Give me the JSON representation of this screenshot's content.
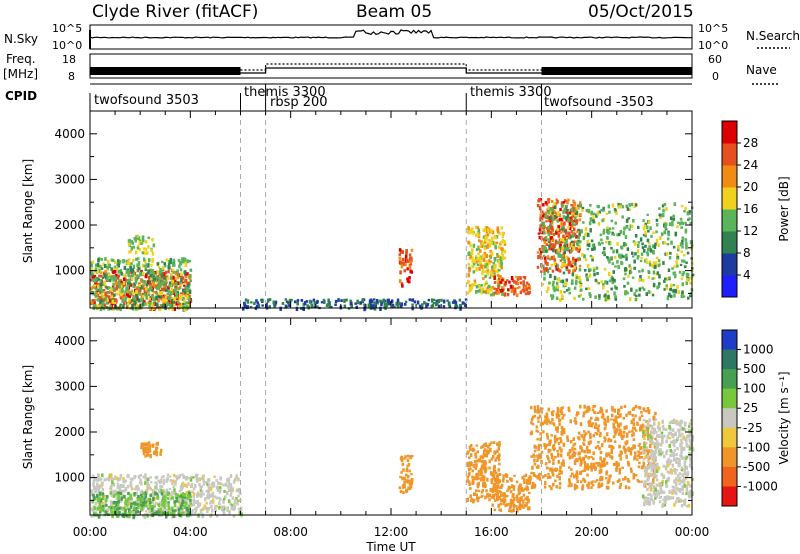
{
  "header": {
    "station": "Clyde River (fitACF)",
    "beam": "Beam 05",
    "date": "05/Oct/2015"
  },
  "strip": {
    "nsky_label": "N.Sky",
    "nsky_ticks": [
      "10^5",
      "10^0"
    ],
    "nsearch_label": "N.Search",
    "freq_label_1": "Freq.",
    "freq_label_2": "[MHz]",
    "freq_ticks": [
      "18",
      "8"
    ],
    "nave_label": "Nave",
    "nave_ticks": [
      "60",
      "0"
    ],
    "cpid_label": "CPID",
    "cpid_segments": [
      {
        "label": "twofsound 3503",
        "start_hour": 0.0,
        "end_hour": 6.0
      },
      {
        "label": "themis 3300",
        "start_hour": 6.0,
        "end_hour": 7.0
      },
      {
        "label": "rbsp 200",
        "start_hour": 7.0,
        "end_hour": 15.0
      },
      {
        "label": "themis 3300",
        "start_hour": 15.0,
        "end_hour": 18.0
      },
      {
        "label": "twofsound -3503",
        "start_hour": 18.0,
        "end_hour": 24.0
      }
    ]
  },
  "axes": {
    "xlabel": "Time UT",
    "ylabel": "Slant Range [km]",
    "x_ticks": [
      "00:00",
      "04:00",
      "08:00",
      "12:00",
      "16:00",
      "20:00",
      "00:00"
    ],
    "y_ticks": [
      "1000",
      "2000",
      "3000",
      "4000"
    ]
  },
  "colorbars": {
    "power": {
      "label": "Power [dB]",
      "ticks": [
        "4",
        "8",
        "12",
        "16",
        "20",
        "24",
        "28"
      ],
      "colors": [
        "#1e1eff",
        "#1e3ca0",
        "#328250",
        "#5ab45a",
        "#f0d21e",
        "#f08c14",
        "#e6501e",
        "#dc0000"
      ]
    },
    "velocity": {
      "label": "Velocity [m s⁻¹]",
      "ticks": [
        "1000",
        "500",
        "100",
        "25",
        "-25",
        "-100",
        "-500",
        "-1000"
      ],
      "colors": [
        "#1e3cc8",
        "#2d7864",
        "#46a050",
        "#78c83c",
        "#c8c8c0",
        "#f0c83c",
        "#f09628",
        "#f0641e",
        "#e61414"
      ]
    }
  },
  "chart_data": {
    "type": "heatmap",
    "x_range_hours": [
      0,
      24
    ],
    "y_range_km": [
      180,
      4500
    ],
    "cpid_change_hours": [
      6.0,
      7.0,
      15.0,
      18.0
    ],
    "panels": [
      {
        "name": "Power [dB]",
        "regions": [
          {
            "t0": 0.0,
            "t1": 4.0,
            "r0": 180,
            "r1": 1050,
            "value": 26
          },
          {
            "t0": 0.0,
            "t1": 4.0,
            "r0": 180,
            "r1": 1300,
            "value": 14
          },
          {
            "t0": 1.5,
            "t1": 2.5,
            "r0": 1400,
            "r1": 1800,
            "value": 16
          },
          {
            "t0": 12.3,
            "t1": 12.8,
            "r0": 700,
            "r1": 1500,
            "value": 26
          },
          {
            "t0": 15.0,
            "t1": 16.5,
            "r0": 500,
            "r1": 2000,
            "value": 18
          },
          {
            "t0": 16.0,
            "t1": 17.5,
            "r0": 500,
            "r1": 900,
            "value": 26
          },
          {
            "t0": 17.8,
            "t1": 19.5,
            "r0": 1000,
            "r1": 2600,
            "value": 26
          },
          {
            "t0": 18.0,
            "t1": 24.0,
            "r0": 400,
            "r1": 2500,
            "value": 14
          },
          {
            "t0": 6.0,
            "t1": 15.0,
            "r0": 200,
            "r1": 400,
            "value": 8
          }
        ]
      },
      {
        "name": "Velocity [m s-1]",
        "regions": [
          {
            "t0": 0.0,
            "t1": 6.0,
            "r0": 180,
            "r1": 1100,
            "value": 0
          },
          {
            "t0": 0.0,
            "t1": 4.0,
            "r0": 180,
            "r1": 700,
            "value": 100
          },
          {
            "t0": 2.0,
            "t1": 2.8,
            "r0": 1500,
            "r1": 1800,
            "value": -200
          },
          {
            "t0": 12.3,
            "t1": 12.8,
            "r0": 700,
            "r1": 1500,
            "value": -300
          },
          {
            "t0": 15.0,
            "t1": 16.3,
            "r0": 500,
            "r1": 1800,
            "value": -150
          },
          {
            "t0": 16.0,
            "t1": 17.5,
            "r0": 300,
            "r1": 1100,
            "value": -200
          },
          {
            "t0": 17.5,
            "t1": 22.5,
            "r0": 800,
            "r1": 2600,
            "value": -400
          },
          {
            "t0": 22.0,
            "t1": 24.0,
            "r0": 400,
            "r1": 2300,
            "value": 0
          }
        ]
      }
    ]
  }
}
